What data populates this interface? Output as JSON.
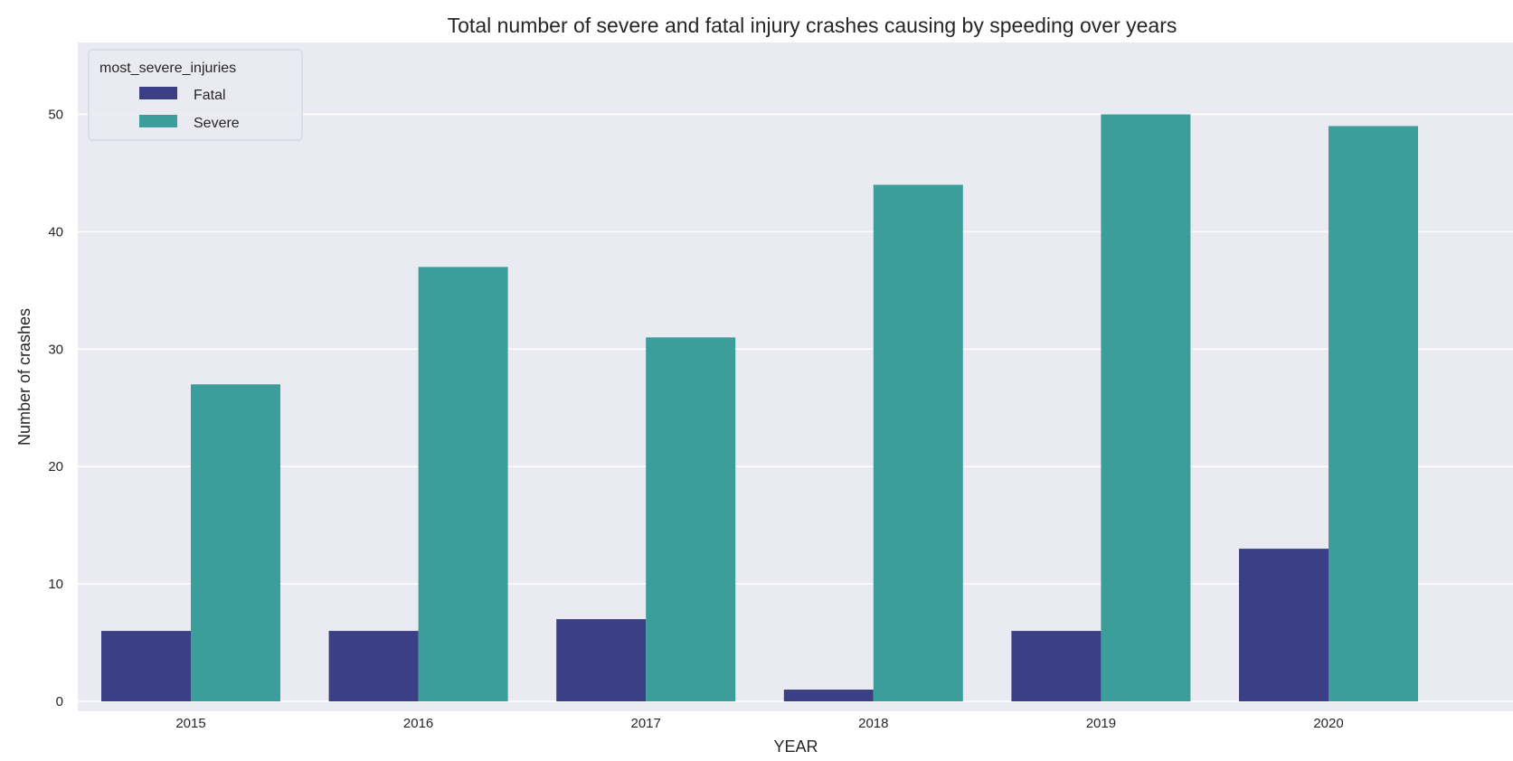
{
  "chart_data": {
    "type": "bar",
    "title": "Total number of severe and fatal injury crashes causing by speeding over years",
    "xlabel": "YEAR",
    "ylabel": "Number of crashes",
    "categories": [
      "2015",
      "2016",
      "2017",
      "2018",
      "2019",
      "2020"
    ],
    "series": [
      {
        "name": "Fatal",
        "values": [
          6,
          6,
          7,
          1,
          6,
          13
        ],
        "color": "#3b3f86"
      },
      {
        "name": "Severe",
        "values": [
          27,
          37,
          31,
          44,
          50,
          49
        ],
        "color": "#3b9e9b"
      }
    ],
    "ylim": [
      0,
      52.5
    ],
    "yticks": [
      0,
      10,
      20,
      30,
      40,
      50
    ],
    "grid": true,
    "legend": {
      "title": "most_severe_injuries",
      "placement": "top-left"
    },
    "colors": {
      "background": "#eaeaf2",
      "grid": "#ffffff"
    }
  }
}
